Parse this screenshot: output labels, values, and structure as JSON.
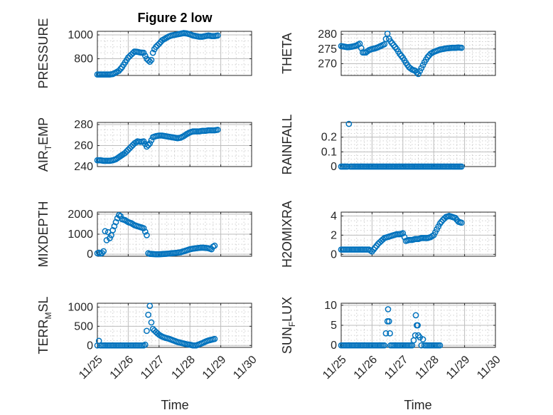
{
  "figure": {
    "title": "Figure 2 low",
    "marker_color": "#0072bd",
    "x_axis_label": "Time",
    "x_tick_labels": [
      "11/25",
      "11/26",
      "11/27",
      "11/28",
      "11/29",
      "11/30"
    ]
  },
  "chart_data": [
    {
      "type": "scatter",
      "title": "Figure 2 low",
      "ylabel": "PRESSURE",
      "xlabel": "",
      "xlim": [
        0,
        5
      ],
      "ylim": [
        660,
        1030
      ],
      "yticks": [
        800,
        1000
      ],
      "grid": true,
      "x": [
        0,
        0.1,
        0.2,
        0.3,
        0.4,
        0.5,
        0.6,
        0.7,
        0.8,
        0.9,
        1.0,
        1.1,
        1.2,
        1.3,
        1.4,
        1.5,
        1.6,
        1.7,
        1.75,
        1.8,
        1.85,
        1.9,
        2.0,
        2.1,
        2.2,
        2.3,
        2.4,
        2.5,
        2.6,
        2.7,
        2.8,
        2.9,
        3.0,
        3.1,
        3.2,
        3.3,
        3.4,
        3.5,
        3.6,
        3.7,
        3.8,
        3.9
      ],
      "y": [
        668,
        668,
        668,
        668,
        668,
        672,
        685,
        700,
        730,
        770,
        810,
        835,
        860,
        858,
        852,
        850,
        800,
        775,
        790,
        850,
        880,
        900,
        925,
        955,
        970,
        985,
        995,
        1000,
        1005,
        1010,
        1015,
        1012,
        1005,
        995,
        990,
        985,
        985,
        990,
        995,
        990,
        990,
        995
      ]
    },
    {
      "type": "scatter",
      "ylabel": "THETA",
      "xlabel": "",
      "xlim": [
        0,
        5
      ],
      "ylim": [
        266,
        281
      ],
      "yticks": [
        270,
        275,
        280
      ],
      "grid": true,
      "x": [
        0,
        0.1,
        0.2,
        0.3,
        0.4,
        0.5,
        0.6,
        0.7,
        0.8,
        0.9,
        1.0,
        1.1,
        1.2,
        1.3,
        1.4,
        1.5,
        1.55,
        1.6,
        1.7,
        1.8,
        1.9,
        2.0,
        2.1,
        2.2,
        2.3,
        2.4,
        2.5,
        2.6,
        2.7,
        2.8,
        2.9,
        3.0,
        3.1,
        3.2,
        3.3,
        3.4,
        3.5,
        3.6,
        3.7,
        3.8,
        3.9
      ],
      "y": [
        276,
        275.8,
        275.6,
        275.7,
        275.9,
        276.2,
        276.8,
        273.8,
        273.8,
        274.6,
        275.0,
        275.2,
        275.6,
        276.1,
        276.6,
        280.2,
        278.5,
        277.6,
        276.3,
        275.0,
        273.3,
        272.0,
        270.3,
        268.8,
        268.0,
        267.6,
        266.5,
        268.5,
        270.5,
        272.2,
        273.4,
        274.0,
        274.4,
        274.8,
        275.0,
        275.2,
        275.3,
        275.4,
        275.4,
        275.5,
        275.4
      ]
    },
    {
      "type": "scatter",
      "ylabel": "AIR_TEMP",
      "xlabel": "",
      "xlim": [
        0,
        5
      ],
      "ylim": [
        240,
        282
      ],
      "yticks": [
        240,
        260,
        280
      ],
      "grid": true,
      "x": [
        0,
        0.1,
        0.2,
        0.3,
        0.4,
        0.5,
        0.6,
        0.7,
        0.8,
        0.9,
        1.0,
        1.1,
        1.2,
        1.3,
        1.4,
        1.5,
        1.6,
        1.7,
        1.8,
        1.9,
        2.0,
        2.1,
        2.2,
        2.3,
        2.4,
        2.5,
        2.6,
        2.7,
        2.8,
        2.9,
        3.0,
        3.1,
        3.2,
        3.3,
        3.4,
        3.5,
        3.6,
        3.7,
        3.8,
        3.9
      ],
      "y": [
        246,
        246,
        245.5,
        245.5,
        245.5,
        246,
        247,
        249,
        251,
        253,
        256,
        259,
        262,
        264,
        263.5,
        264,
        259,
        262,
        268,
        269,
        269.5,
        269.5,
        269,
        268.5,
        268,
        267.5,
        267,
        267.5,
        269,
        271,
        272.5,
        273.5,
        273.5,
        273.5,
        274,
        274,
        274.5,
        274.5,
        274.5,
        275
      ]
    },
    {
      "type": "scatter",
      "ylabel": "RAINFALL",
      "xlabel": "",
      "xlim": [
        0,
        5
      ],
      "ylim": [
        0,
        0.3
      ],
      "yticks": [
        0,
        0.1,
        0.2
      ],
      "grid": true,
      "x": [
        0,
        0.1,
        0.2,
        0.25,
        0.3,
        0.4,
        0.5,
        0.6,
        0.7,
        0.8,
        0.9,
        1.0,
        1.1,
        1.2,
        1.3,
        1.4,
        1.5,
        1.6,
        1.7,
        1.8,
        1.9,
        2.0,
        2.1,
        2.2,
        2.3,
        2.4,
        2.5,
        2.6,
        2.7,
        2.8,
        2.9,
        3.0,
        3.1,
        3.2,
        3.3,
        3.4,
        3.5,
        3.6,
        3.7,
        3.8,
        3.9
      ],
      "y": [
        0,
        0,
        0,
        0.29,
        0,
        0,
        0,
        0,
        0,
        0,
        0,
        0,
        0,
        0,
        0,
        0,
        0,
        0,
        0,
        0,
        0,
        0,
        0,
        0,
        0,
        0,
        0,
        0,
        0,
        0,
        0,
        0,
        0,
        0,
        0,
        0,
        0,
        0,
        0,
        0,
        0
      ]
    },
    {
      "type": "scatter",
      "ylabel": "MIXDEPTH",
      "xlabel": "",
      "xlim": [
        0,
        5
      ],
      "ylim": [
        -100,
        2100
      ],
      "yticks": [
        0,
        1000,
        2000
      ],
      "grid": true,
      "x": [
        0,
        0.05,
        0.1,
        0.15,
        0.2,
        0.25,
        0.3,
        0.35,
        0.4,
        0.45,
        0.5,
        0.55,
        0.6,
        0.65,
        0.7,
        0.75,
        0.8,
        0.9,
        1.0,
        1.1,
        1.2,
        1.3,
        1.4,
        1.5,
        1.6,
        1.65,
        1.7,
        1.8,
        1.9,
        2.0,
        2.1,
        2.2,
        2.3,
        2.4,
        2.5,
        2.6,
        2.7,
        2.8,
        2.9,
        3.0,
        3.1,
        3.2,
        3.3,
        3.4,
        3.5,
        3.6,
        3.7,
        3.75,
        3.8
      ],
      "y": [
        50,
        80,
        30,
        60,
        150,
        1150,
        700,
        1100,
        800,
        950,
        1200,
        1400,
        1600,
        1800,
        1950,
        1900,
        1750,
        1700,
        1600,
        1550,
        1450,
        1400,
        1350,
        1300,
        950,
        50,
        20,
        10,
        0,
        0,
        10,
        20,
        30,
        50,
        60,
        80,
        100,
        150,
        200,
        250,
        280,
        300,
        320,
        330,
        320,
        300,
        250,
        380,
        430
      ]
    },
    {
      "type": "scatter",
      "ylabel": "H2OMIXRA",
      "xlabel": "",
      "xlim": [
        0,
        5
      ],
      "ylim": [
        -0.2,
        4.4
      ],
      "yticks": [
        0,
        2,
        4
      ],
      "grid": true,
      "x": [
        0,
        0.1,
        0.2,
        0.3,
        0.4,
        0.5,
        0.6,
        0.7,
        0.8,
        0.9,
        1.0,
        1.1,
        1.2,
        1.3,
        1.4,
        1.5,
        1.6,
        1.7,
        1.8,
        1.9,
        2.0,
        2.1,
        2.2,
        2.3,
        2.4,
        2.5,
        2.6,
        2.7,
        2.8,
        2.9,
        3.0,
        3.1,
        3.2,
        3.3,
        3.4,
        3.5,
        3.6,
        3.7,
        3.8,
        3.9
      ],
      "y": [
        0.5,
        0.5,
        0.5,
        0.5,
        0.5,
        0.5,
        0.5,
        0.5,
        0.5,
        0.5,
        0.3,
        0.7,
        1.1,
        1.4,
        1.7,
        1.8,
        1.9,
        2.0,
        2.1,
        2.1,
        2.2,
        1.4,
        1.5,
        1.5,
        1.6,
        1.6,
        1.7,
        1.7,
        1.7,
        1.8,
        2.0,
        2.6,
        3.2,
        3.6,
        3.9,
        4.0,
        3.9,
        3.8,
        3.4,
        3.3
      ]
    },
    {
      "type": "scatter",
      "ylabel": "TERR_MSL",
      "xlabel": "",
      "xlim": [
        0,
        5
      ],
      "ylim": [
        -50,
        1100
      ],
      "yticks": [
        0,
        500,
        1000
      ],
      "grid": true,
      "x": [
        0,
        0.05,
        0.1,
        0.2,
        0.3,
        0.4,
        0.5,
        0.6,
        0.7,
        0.8,
        0.9,
        1.0,
        1.1,
        1.2,
        1.3,
        1.4,
        1.5,
        1.55,
        1.6,
        1.65,
        1.7,
        1.75,
        1.8,
        1.9,
        2.0,
        2.1,
        2.2,
        2.3,
        2.4,
        2.5,
        2.6,
        2.7,
        2.8,
        2.9,
        3.0,
        3.1,
        3.2,
        3.3,
        3.4,
        3.5,
        3.6,
        3.7,
        3.8
      ],
      "y": [
        0,
        120,
        0,
        0,
        0,
        0,
        0,
        0,
        0,
        0,
        0,
        0,
        0,
        0,
        0,
        0,
        0,
        20,
        380,
        800,
        1030,
        600,
        430,
        350,
        280,
        230,
        200,
        180,
        150,
        120,
        90,
        70,
        50,
        30,
        20,
        0,
        0,
        30,
        60,
        100,
        130,
        150,
        170
      ]
    },
    {
      "type": "scatter",
      "ylabel": "SUN_FLUX",
      "xlabel": "",
      "xlim": [
        0,
        5
      ],
      "ylim": [
        -0.5,
        10.5
      ],
      "yticks": [
        0,
        5,
        10
      ],
      "grid": true,
      "x": [
        0,
        0.1,
        0.2,
        0.3,
        0.4,
        0.5,
        0.6,
        0.7,
        0.8,
        0.9,
        1.0,
        1.1,
        1.2,
        1.3,
        1.4,
        1.45,
        1.5,
        1.52,
        1.55,
        1.58,
        1.6,
        1.65,
        1.7,
        1.8,
        1.9,
        2.0,
        2.1,
        2.2,
        2.3,
        2.4,
        2.42,
        2.45,
        2.48,
        2.5,
        2.55,
        2.6,
        2.65,
        2.7,
        2.75,
        2.8,
        2.9,
        3.0,
        3.1,
        3.2
      ],
      "y": [
        0,
        0,
        0,
        0,
        0,
        0,
        0,
        0,
        0,
        0,
        0,
        0,
        0,
        0,
        0,
        3,
        6,
        9,
        6,
        3,
        0,
        0,
        0,
        0,
        0,
        0,
        0,
        0,
        0,
        2.5,
        7.5,
        5,
        5,
        2.5,
        2,
        0,
        1.5,
        0,
        0,
        0,
        0,
        0,
        0,
        0
      ]
    }
  ]
}
